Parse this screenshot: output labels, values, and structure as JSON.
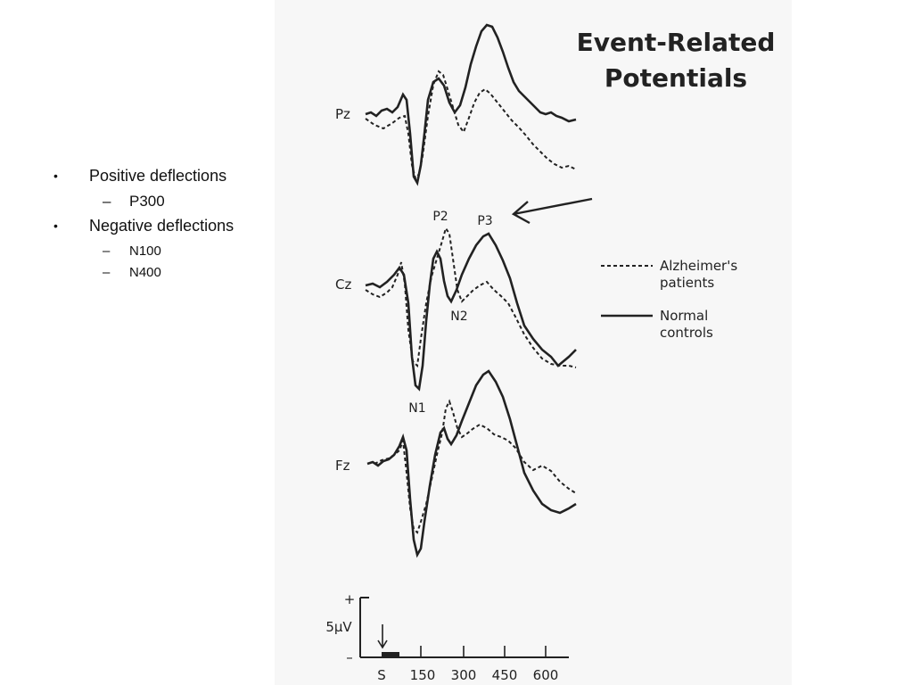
{
  "bullets": [
    {
      "marker": "•",
      "text": "Positive deflections",
      "children": [
        {
          "marker": "–",
          "text": "P300"
        }
      ]
    },
    {
      "marker": "•",
      "text": "Negative deflections",
      "children": [
        {
          "marker": "–",
          "text": "N100"
        },
        {
          "marker": "–",
          "text": "N400"
        }
      ]
    }
  ],
  "figure": {
    "title_line1": "Event-Related",
    "title_line2": "Potentials",
    "electrodes": {
      "pz": "Pz",
      "cz": "Cz",
      "fz": "Fz"
    },
    "components": {
      "p2": "P2",
      "p3": "P3",
      "n1": "N1",
      "n2": "N2"
    },
    "legend": {
      "alz_line1": "Alzheimer's",
      "alz_line2": "patients",
      "normal_line1": "Normal",
      "normal_line2": "controls"
    },
    "scale": {
      "plus": "+",
      "minus": "–",
      "amplitude": "5μV",
      "stimulus": "S",
      "ticks": [
        "150",
        "300",
        "450",
        "600"
      ]
    },
    "colors": {
      "panel": "#f7f7f7",
      "ink": "#222222"
    }
  }
}
